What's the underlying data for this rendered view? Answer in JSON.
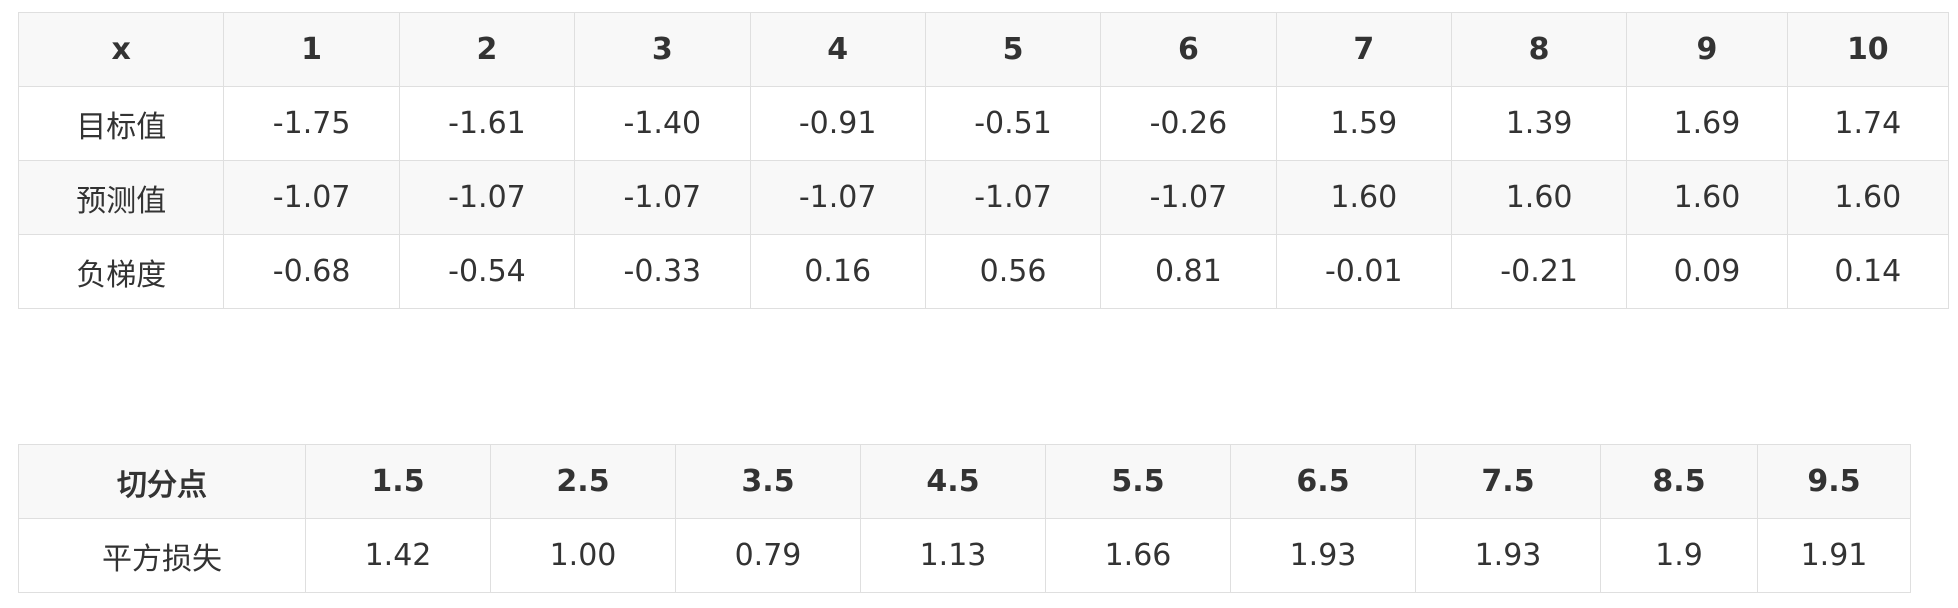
{
  "table_gradients": {
    "header": [
      "x",
      "1",
      "2",
      "3",
      "4",
      "5",
      "6",
      "7",
      "8",
      "9",
      "10"
    ],
    "rows": [
      [
        "目标值",
        "-1.75",
        "-1.61",
        "-1.40",
        "-0.91",
        "-0.51",
        "-0.26",
        "1.59",
        "1.39",
        "1.69",
        "1.74"
      ],
      [
        "预测值",
        "-1.07",
        "-1.07",
        "-1.07",
        "-1.07",
        "-1.07",
        "-1.07",
        "1.60",
        "1.60",
        "1.60",
        "1.60"
      ],
      [
        "负梯度",
        "-0.68",
        "-0.54",
        "-0.33",
        "0.16",
        "0.56",
        "0.81",
        "-0.01",
        "-0.21",
        "0.09",
        "0.14"
      ]
    ]
  },
  "table_splits": {
    "header": [
      "切分点",
      "1.5",
      "2.5",
      "3.5",
      "4.5",
      "5.5",
      "6.5",
      "7.5",
      "8.5",
      "9.5"
    ],
    "rows": [
      [
        "平方损失",
        "1.42",
        "1.00",
        "0.79",
        "1.13",
        "1.66",
        "1.93",
        "1.93",
        "1.9",
        "1.91"
      ]
    ]
  }
}
